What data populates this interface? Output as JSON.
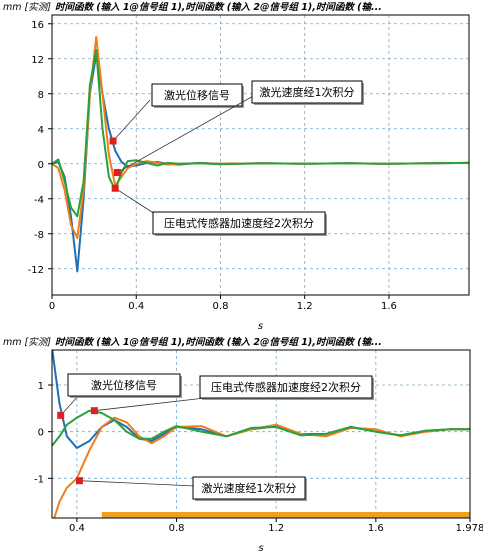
{
  "chart_data": [
    {
      "type": "line",
      "unit_label": "mm [实测]",
      "title": "时间函数 (输入 1@信号组 1),时间函数 (输入 2@信号组 1),时间函数 (输...",
      "xlabel": "s",
      "xlim": [
        0,
        1.98
      ],
      "ylim": [
        -15,
        17
      ],
      "xticks": [
        "0",
        "0.4",
        "0.8",
        "1.2",
        "1.6"
      ],
      "xtick_values": [
        0,
        0.4,
        0.8,
        1.2,
        1.6
      ],
      "yticks": [
        "16",
        "12",
        "8",
        "4",
        "0",
        "-4",
        "-8",
        "-12"
      ],
      "ytick_values": [
        16,
        12,
        8,
        4,
        0,
        -4,
        -8,
        -12
      ],
      "grid": true,
      "series": [
        {
          "color": "#1f6fb4",
          "x": [
            0,
            0.03,
            0.06,
            0.09,
            0.12,
            0.15,
            0.18,
            0.21,
            0.24,
            0.27,
            0.3,
            0.33,
            0.36,
            0.4,
            0.45,
            0.5,
            0.55,
            0.6,
            0.7,
            0.8,
            1.0,
            1.2,
            1.4,
            1.6,
            1.8,
            1.98
          ],
          "values": [
            0,
            0.2,
            -1.5,
            -6,
            -12.3,
            -4,
            8,
            12.5,
            8,
            4,
            1.5,
            0.2,
            -0.3,
            -0.2,
            0.1,
            0.2,
            0,
            -0.1,
            0.1,
            0,
            0.05,
            0,
            0.05,
            0,
            0.05,
            0.1
          ]
        },
        {
          "color": "#f07d1a",
          "x": [
            0,
            0.03,
            0.06,
            0.09,
            0.12,
            0.15,
            0.18,
            0.21,
            0.24,
            0.27,
            0.3,
            0.33,
            0.36,
            0.4,
            0.45,
            0.5,
            0.55,
            0.6,
            0.7,
            0.8,
            1.0,
            1.2,
            1.4,
            1.6,
            1.8,
            1.98
          ],
          "values": [
            0,
            -0.5,
            -3,
            -7,
            -8.5,
            -3,
            8,
            14.5,
            8,
            1,
            -2.5,
            -1.5,
            -0.5,
            0,
            0.3,
            0.1,
            -0.1,
            0,
            0.05,
            0,
            0.05,
            0,
            0.05,
            0,
            0.05,
            0.1
          ]
        },
        {
          "color": "#2aa13a",
          "x": [
            0,
            0.03,
            0.06,
            0.09,
            0.12,
            0.15,
            0.18,
            0.21,
            0.24,
            0.27,
            0.3,
            0.33,
            0.36,
            0.4,
            0.45,
            0.5,
            0.55,
            0.6,
            0.7,
            0.8,
            1.0,
            1.2,
            1.4,
            1.6,
            1.8,
            1.98
          ],
          "values": [
            0,
            0.5,
            -2,
            -5,
            -6,
            -2,
            9,
            13,
            4,
            -1.5,
            -3,
            -1,
            0.3,
            0.4,
            0.1,
            -0.2,
            0.1,
            0,
            0.05,
            -0.05,
            0.05,
            0,
            0.05,
            0,
            0.05,
            0.1
          ]
        }
      ],
      "annotations": [
        {
          "text": "激光位移信号",
          "point": [
            0.29,
            2.6
          ],
          "marker_color": "#e02020"
        },
        {
          "text": "激光速度经1次积分",
          "point": [
            0.31,
            -1.0
          ],
          "marker_color": "#e02020"
        },
        {
          "text": "压电式传感器加速度经2次积分",
          "point": [
            0.3,
            -2.8
          ],
          "marker_color": "#e02020"
        }
      ]
    },
    {
      "type": "line",
      "unit_label": "mm [实测]",
      "title": "时间函数 (输入 1@信号组 1),时间函数 (输入 2@信号组 1),时间函数 (输...",
      "xlabel": "s",
      "xlim": [
        0.3,
        1.978
      ],
      "ylim": [
        -1.85,
        1.75
      ],
      "xticks": [
        "0.4",
        "0.8",
        "1.2",
        "1.6",
        "1.978"
      ],
      "xtick_values": [
        0.4,
        0.8,
        1.2,
        1.6,
        1.978
      ],
      "yticks": [
        "1",
        "0",
        "-1"
      ],
      "ytick_values": [
        1,
        0,
        -1
      ],
      "grid": true,
      "range_bar": {
        "start": 0.5,
        "end": 1.978,
        "color": "#f0a020"
      },
      "series": [
        {
          "color": "#1f6fb4",
          "x": [
            0.3,
            0.33,
            0.36,
            0.4,
            0.45,
            0.5,
            0.55,
            0.6,
            0.65,
            0.7,
            0.75,
            0.8,
            0.9,
            1.0,
            1.1,
            1.2,
            1.3,
            1.4,
            1.5,
            1.6,
            1.7,
            1.8,
            1.9,
            1.978
          ],
          "values": [
            1.8,
            0.6,
            -0.1,
            -0.35,
            -0.2,
            0.1,
            0.25,
            0.1,
            -0.15,
            -0.2,
            -0.05,
            0.1,
            0.05,
            -0.1,
            0.05,
            0.12,
            -0.05,
            -0.05,
            0.1,
            0.0,
            -0.08,
            0.02,
            0.05,
            0.05
          ]
        },
        {
          "color": "#f07d1a",
          "x": [
            0.3,
            0.33,
            0.36,
            0.4,
            0.45,
            0.5,
            0.55,
            0.6,
            0.65,
            0.7,
            0.75,
            0.8,
            0.9,
            1.0,
            1.1,
            1.2,
            1.3,
            1.4,
            1.5,
            1.6,
            1.7,
            1.8,
            1.9,
            1.978
          ],
          "values": [
            -2.0,
            -1.5,
            -1.2,
            -1.0,
            -0.4,
            0.1,
            0.3,
            0.2,
            -0.1,
            -0.25,
            -0.1,
            0.1,
            0.12,
            -0.1,
            0.05,
            0.15,
            -0.05,
            -0.1,
            0.08,
            0.05,
            -0.1,
            0.0,
            0.05,
            0.06
          ]
        },
        {
          "color": "#2aa13a",
          "x": [
            0.3,
            0.33,
            0.36,
            0.4,
            0.45,
            0.5,
            0.55,
            0.6,
            0.65,
            0.7,
            0.75,
            0.8,
            0.9,
            1.0,
            1.1,
            1.2,
            1.3,
            1.4,
            1.5,
            1.6,
            1.7,
            1.8,
            1.9,
            1.978
          ],
          "values": [
            -0.3,
            -0.1,
            0.15,
            0.3,
            0.45,
            0.4,
            0.25,
            0.0,
            -0.15,
            -0.15,
            0.0,
            0.12,
            0.0,
            -0.1,
            0.08,
            0.1,
            -0.08,
            -0.05,
            0.1,
            0.0,
            -0.08,
            0.02,
            0.05,
            0.05
          ]
        }
      ],
      "annotations": [
        {
          "text": "激光位移信号",
          "point": [
            0.335,
            0.35
          ],
          "marker_color": "#e02020"
        },
        {
          "text": "压电式传感器加速度经2次积分",
          "point": [
            0.47,
            0.45
          ],
          "marker_color": "#e02020"
        },
        {
          "text": "激光速度经1次积分",
          "point": [
            0.41,
            -1.05
          ],
          "marker_color": "#e02020"
        }
      ]
    }
  ]
}
